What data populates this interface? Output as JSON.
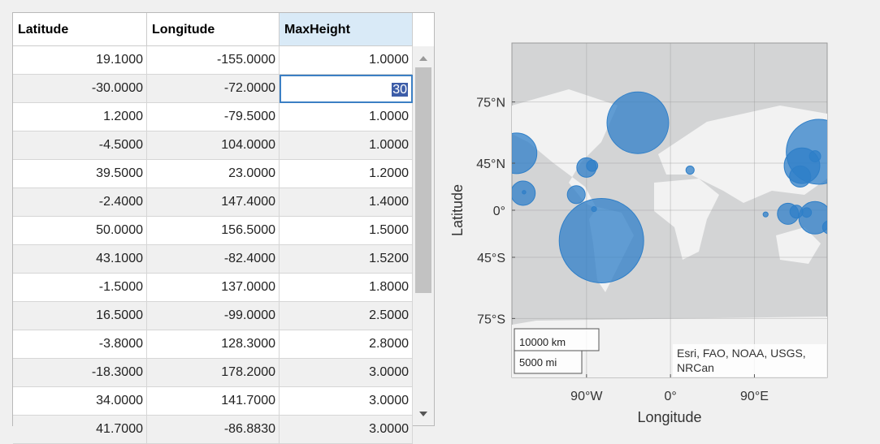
{
  "table": {
    "headers": [
      "Latitude",
      "Longitude",
      "MaxHeight"
    ],
    "rows": [
      [
        "19.1000",
        "-155.0000",
        "1.0000"
      ],
      [
        "-30.0000",
        "-72.0000",
        "30"
      ],
      [
        "1.2000",
        "-79.5000",
        "1.0000"
      ],
      [
        "-4.5000",
        "104.0000",
        "1.0000"
      ],
      [
        "39.5000",
        "23.0000",
        "1.2000"
      ],
      [
        "-2.4000",
        "147.4000",
        "1.4000"
      ],
      [
        "50.0000",
        "156.5000",
        "1.5000"
      ],
      [
        "43.1000",
        "-82.4000",
        "1.5200"
      ],
      [
        "-1.5000",
        "137.0000",
        "1.8000"
      ],
      [
        "16.5000",
        "-99.0000",
        "2.5000"
      ],
      [
        "-3.8000",
        "128.3000",
        "2.8000"
      ],
      [
        "-18.3000",
        "178.2000",
        "3.0000"
      ],
      [
        "34.0000",
        "141.7000",
        "3.0000"
      ],
      [
        "41.7000",
        "-86.8830",
        "3.0000"
      ]
    ]
  },
  "map": {
    "type": "geobubble",
    "xlabel": "Longitude",
    "ylabel": "Latitude",
    "projection": "mercator",
    "xlim": [
      -170,
      168
    ],
    "ylim": [
      -85,
      85
    ],
    "xticks": [
      {
        "value": -90,
        "label": "90°W"
      },
      {
        "value": 0,
        "label": "0°"
      },
      {
        "value": 90,
        "label": "90°E"
      }
    ],
    "yticks": [
      {
        "value": -75,
        "label": "75°S"
      },
      {
        "value": -45,
        "label": "45°S"
      },
      {
        "value": 0,
        "label": "0°"
      },
      {
        "value": 45,
        "label": "45°N"
      },
      {
        "value": 75,
        "label": "75°N"
      }
    ],
    "grid": true,
    "color": "#2f7fc8",
    "scalebar": [
      "10000 km",
      "5000 mi"
    ],
    "attribution": [
      "Esri, FAO, NOAA, USGS,",
      "NRCan"
    ],
    "bubbles": {
      "lon": [
        -35,
        -74,
        -165,
        -158,
        -157,
        -90,
        -84,
        -101,
        -82,
        21,
        159,
        141,
        155,
        139,
        102,
        126,
        135,
        146,
        155,
        170
      ],
      "lat": [
        68,
        -31,
        52,
        18,
        19,
        41.6,
        43,
        16.5,
        1.2,
        39.5,
        53,
        43,
        50,
        34,
        -4.5,
        -3.8,
        -1.5,
        -2.4,
        -8,
        -18
      ],
      "size": [
        90,
        169,
        39,
        14,
        0.3,
        9,
        3,
        7.6,
        0.6,
        1.6,
        100,
        30,
        3,
        10.6,
        0.6,
        10.6,
        4,
        2.2,
        25,
        4
      ]
    }
  }
}
